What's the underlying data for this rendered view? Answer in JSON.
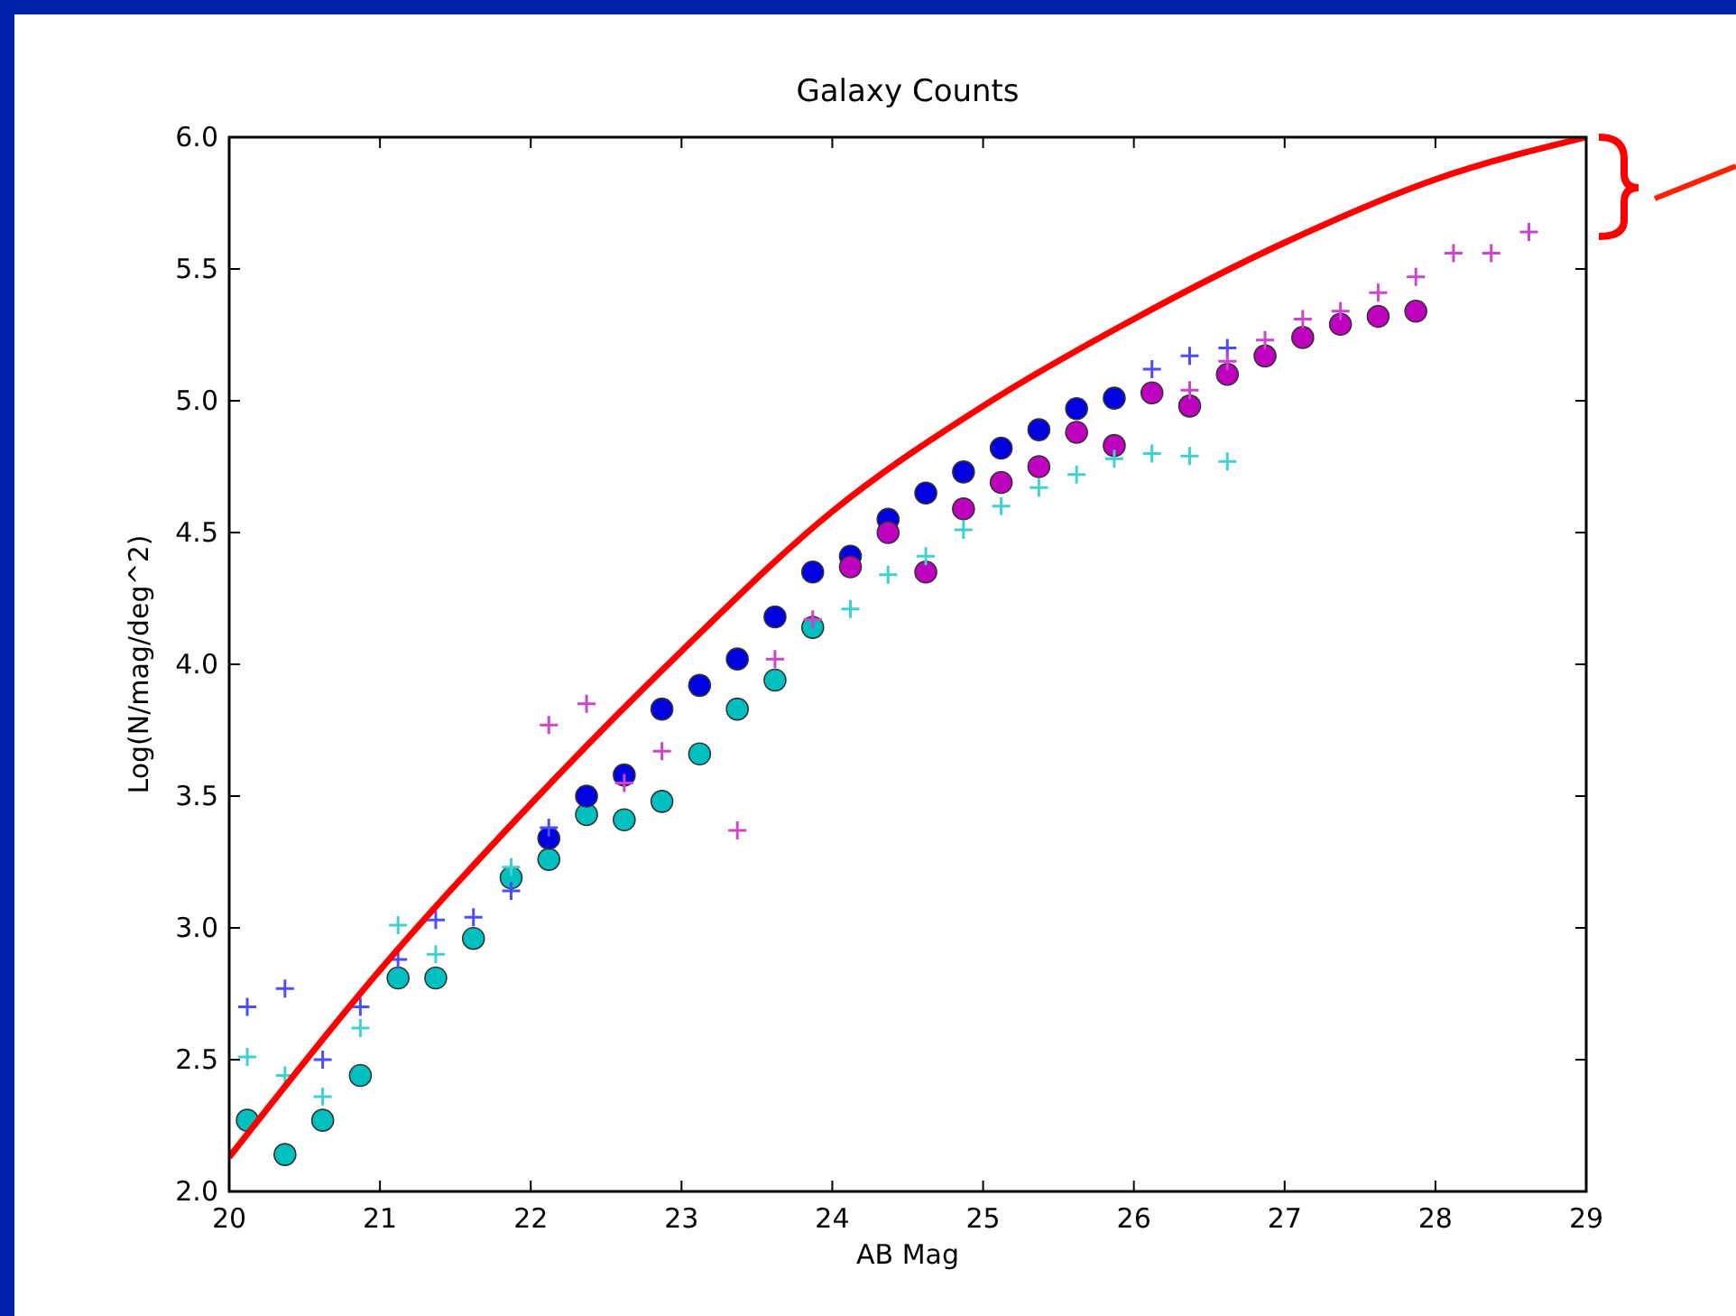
{
  "chart_data": {
    "type": "scatter",
    "title": "Galaxy Counts",
    "xlabel": "AB Mag",
    "ylabel": "Log(N/mag/deg^2)",
    "xlim": [
      20,
      29
    ],
    "ylim": [
      2,
      6
    ],
    "xticks": [
      20,
      21,
      22,
      23,
      24,
      25,
      26,
      27,
      28,
      29
    ],
    "yticks": [
      {
        "value": 2,
        "label": "2.0"
      },
      {
        "value": 2.5,
        "label": "2.5"
      },
      {
        "value": 3,
        "label": "3.0"
      },
      {
        "value": 3.5,
        "label": "3.5"
      },
      {
        "value": 4,
        "label": "4.0"
      },
      {
        "value": 4.5,
        "label": "4.5"
      },
      {
        "value": 5,
        "label": "5.0"
      },
      {
        "value": 5.5,
        "label": "5.5"
      },
      {
        "value": 6,
        "label": "6.0"
      }
    ],
    "grid": false,
    "series": [
      {
        "marker": "cross",
        "color": "#4d4dff",
        "x": [
          20.12,
          20.37,
          20.62,
          20.87,
          21.12,
          21.37,
          21.62,
          21.87,
          22.12,
          26.12,
          26.37,
          26.62
        ],
        "values": [
          2.7,
          2.77,
          2.5,
          2.7,
          2.88,
          3.03,
          3.04,
          3.14,
          3.38,
          5.12,
          5.17,
          5.2
        ]
      },
      {
        "marker": "cross",
        "color": "#40d0d0",
        "x": [
          20.12,
          20.37,
          20.62,
          20.87,
          21.12,
          21.37,
          21.87,
          24.12,
          24.37,
          24.62,
          24.87,
          25.12,
          25.37,
          25.62,
          25.87,
          26.12,
          26.37,
          26.62
        ],
        "values": [
          2.51,
          2.44,
          2.36,
          2.62,
          3.01,
          2.9,
          3.23,
          4.21,
          4.34,
          4.41,
          4.51,
          4.6,
          4.67,
          4.72,
          4.78,
          4.8,
          4.79,
          4.77
        ]
      },
      {
        "marker": "cross",
        "color": "#cc44cc",
        "x": [
          22.12,
          22.37,
          22.62,
          22.87,
          23.37,
          23.62,
          23.87,
          26.37,
          26.62,
          26.87,
          27.12,
          27.37,
          27.62,
          27.87,
          28.12,
          28.37,
          28.62
        ],
        "values": [
          3.77,
          3.85,
          3.55,
          3.67,
          3.37,
          4.02,
          4.17,
          5.04,
          5.15,
          5.23,
          5.31,
          5.34,
          5.41,
          5.47,
          5.56,
          5.56,
          5.64
        ]
      },
      {
        "marker": "circle",
        "color": "#00bfbf",
        "x": [
          20.12,
          20.37,
          20.62,
          20.87,
          21.12,
          21.37,
          21.62,
          21.87,
          22.12,
          22.37,
          22.62,
          22.87,
          23.12,
          23.37,
          23.62,
          23.87
        ],
        "values": [
          2.27,
          2.14,
          2.27,
          2.44,
          2.81,
          2.81,
          2.96,
          3.19,
          3.26,
          3.43,
          3.41,
          3.48,
          3.66,
          3.83,
          3.94,
          4.14
        ]
      },
      {
        "marker": "circle",
        "color": "#0000e0",
        "x": [
          22.12,
          22.37,
          22.62,
          22.87,
          23.12,
          23.37,
          23.62,
          23.87,
          24.12,
          24.37,
          24.62,
          24.87,
          25.12,
          25.37,
          25.62,
          25.87
        ],
        "values": [
          3.34,
          3.5,
          3.58,
          3.83,
          3.92,
          4.02,
          4.18,
          4.35,
          4.41,
          4.55,
          4.65,
          4.73,
          4.82,
          4.89,
          4.97,
          5.01
        ]
      },
      {
        "marker": "circle",
        "color": "#bf00bf",
        "x": [
          24.12,
          24.37,
          24.62,
          24.87,
          25.12,
          25.37,
          25.62,
          25.87,
          26.12,
          26.37,
          26.62,
          26.87,
          27.12,
          27.37,
          27.62,
          27.87
        ],
        "values": [
          4.37,
          4.5,
          4.35,
          4.59,
          4.69,
          4.75,
          4.88,
          4.83,
          5.03,
          4.98,
          5.1,
          5.17,
          5.24,
          5.29,
          5.32,
          5.34
        ]
      },
      {
        "type": "line",
        "marker": "none",
        "line_style": "solid",
        "color": "#ff0000",
        "x": [
          20,
          21,
          22,
          23,
          24,
          25,
          26,
          27,
          28,
          29
        ],
        "values": [
          2.13,
          2.84,
          3.47,
          4.05,
          4.58,
          4.98,
          5.31,
          5.6,
          5.84,
          6.0
        ]
      }
    ]
  }
}
